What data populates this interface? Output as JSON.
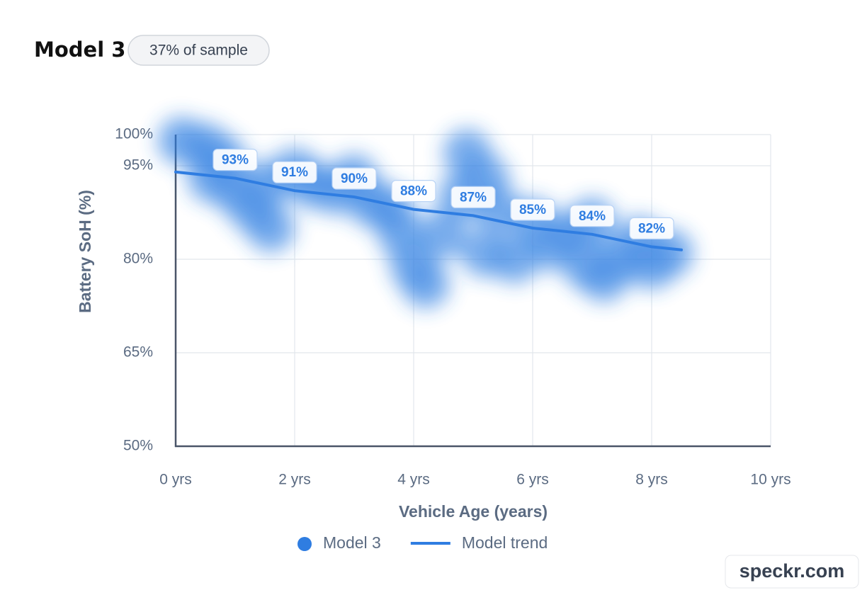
{
  "chart_data": {
    "type": "scatter",
    "title": "Model 3",
    "subtitle": "37% of sample",
    "watermark": "speckr.com",
    "x_label": "Vehicle Age (years)",
    "y_label": "Battery SoH (%)",
    "xlim": [
      0,
      10
    ],
    "xticks": [
      {
        "value": 0,
        "label": "0 yrs"
      },
      {
        "value": 2,
        "label": "2 yrs"
      },
      {
        "value": 4,
        "label": "4 yrs"
      },
      {
        "value": 6,
        "label": "6 yrs"
      },
      {
        "value": 8,
        "label": "8 yrs"
      },
      {
        "value": 10,
        "label": "10 yrs"
      }
    ],
    "ylim": [
      50,
      100
    ],
    "yticks": [
      {
        "value": 50,
        "label": "50%"
      },
      {
        "value": 65,
        "label": "65%"
      },
      {
        "value": 80,
        "label": "80%"
      },
      {
        "value": 95,
        "label": "95%"
      },
      {
        "value": 100,
        "label": "100%"
      }
    ],
    "grid": true,
    "legend": "bottom",
    "series": [
      {
        "name": "Model 3",
        "type": "scatter",
        "color": "#2f7de1",
        "x": [
          0.1,
          0.5,
          0.8,
          0.6,
          1.0,
          1.3,
          1.6,
          1.5,
          2.0,
          2.3,
          2.7,
          3.0,
          3.3,
          3.6,
          3.8,
          4.0,
          4.2,
          4.5,
          4.8,
          4.9,
          5.2,
          5.4,
          5.2,
          5.7,
          6.0,
          6.3,
          6.6,
          6.9,
          7.2,
          7.5,
          7.8,
          8.0,
          8.3,
          7.0
        ],
        "values": [
          99,
          98,
          96,
          93,
          91,
          88,
          85,
          92,
          94,
          92,
          91,
          93,
          89,
          88,
          84,
          79,
          76,
          84,
          90,
          97,
          93,
          88,
          81,
          80,
          86,
          82,
          84,
          79,
          77,
          80,
          83,
          79,
          81,
          86
        ]
      },
      {
        "name": "Model trend",
        "type": "line",
        "color": "#2f7de1",
        "x": [
          0,
          1,
          2,
          3,
          4,
          5,
          6,
          7,
          8,
          8.5
        ],
        "values": [
          94,
          93,
          91,
          90,
          88,
          87,
          85,
          84,
          82,
          81.5
        ],
        "value_labels": [
          null,
          "93%",
          "91%",
          "90%",
          "88%",
          "87%",
          "85%",
          "84%",
          "82%",
          null
        ]
      }
    ]
  }
}
